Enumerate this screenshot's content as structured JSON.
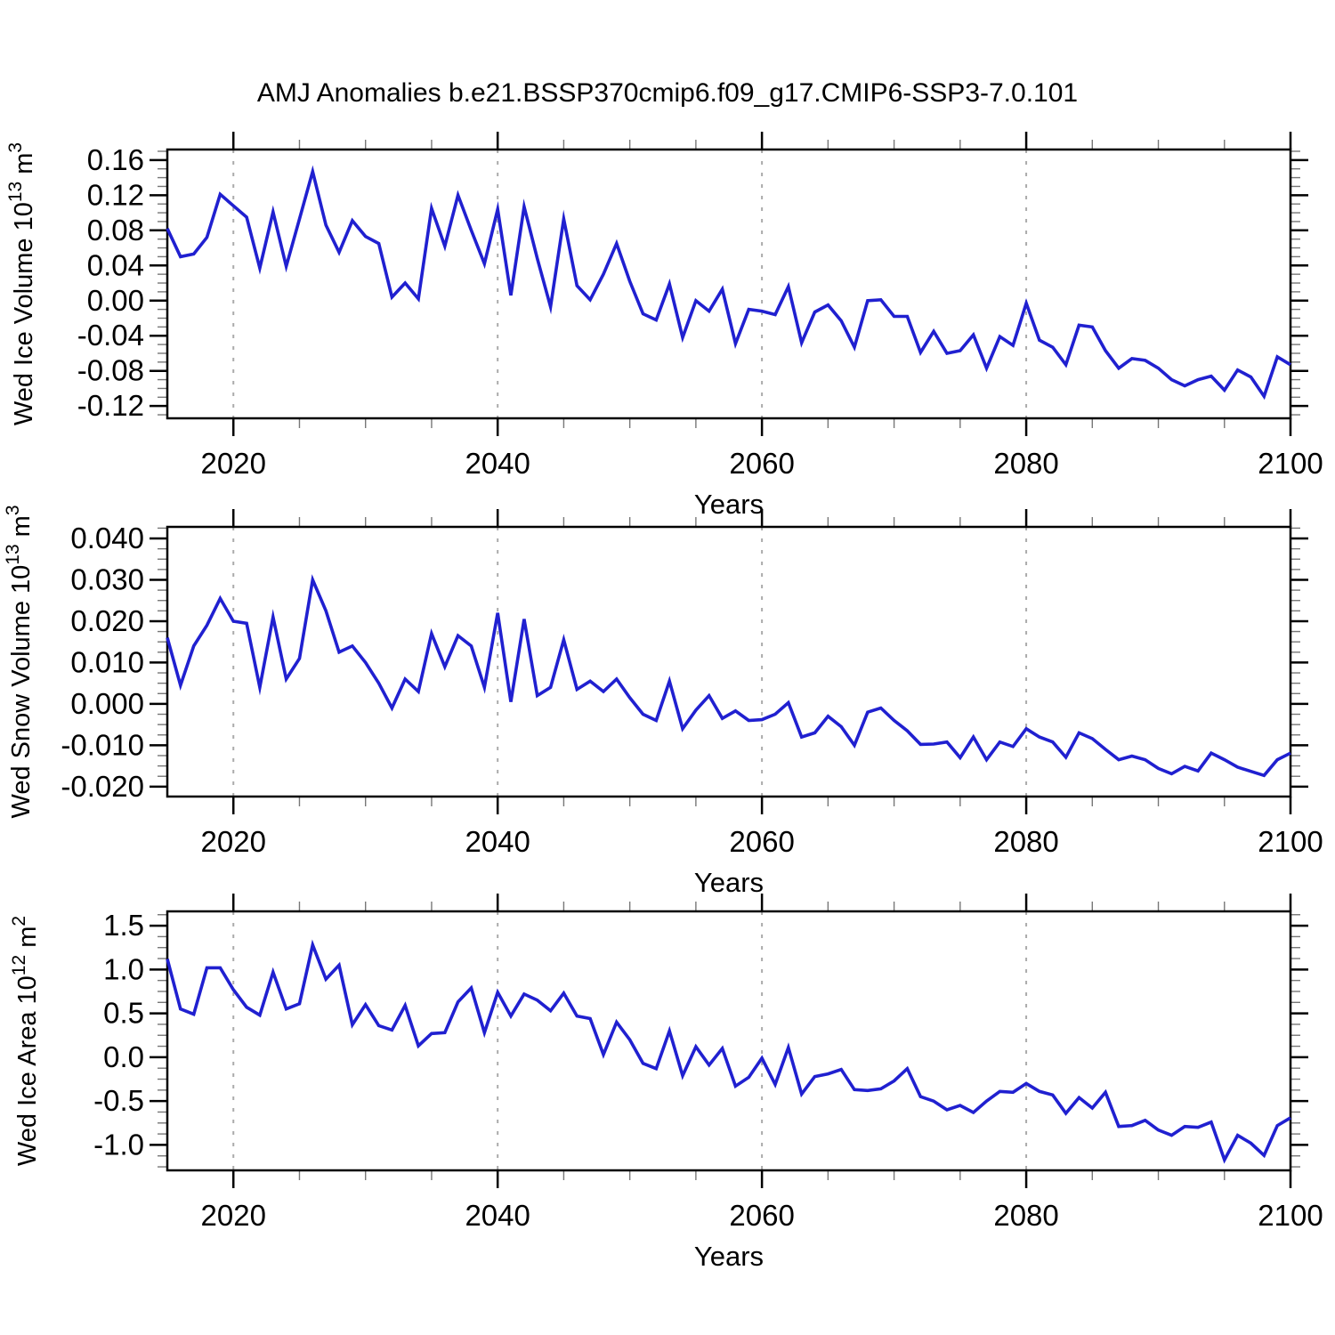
{
  "title": "AMJ Anomalies b.e21.BSSP370cmip6.f09_g17.CMIP6-SSP3-7.0.101",
  "colors": {
    "line": "#2020d0",
    "grid": "#ababab",
    "frame": "#000000",
    "minor_tick": "#777777",
    "text": "#000000"
  },
  "chart_data": [
    {
      "type": "line",
      "id": "wed-ice-volume",
      "ylabel_text": "Wed Ice Volume 10^13 m^3",
      "ylabel_parts": [
        {
          "text": "Wed Ice Volume 10",
          "sup": false
        },
        {
          "text": "13",
          "sup": true
        },
        {
          "text": " m",
          "sup": false
        },
        {
          "text": "3",
          "sup": true
        }
      ],
      "xlabel": "Years",
      "legend": "none",
      "grid": "vertical-dashed",
      "x_start": 2015,
      "x_step": 1,
      "xlim": [
        2015,
        2100
      ],
      "xticks": {
        "values": [
          2020,
          2040,
          2060,
          2080,
          2100
        ],
        "labels": [
          "2020",
          "2040",
          "2060",
          "2080",
          "2100"
        ]
      },
      "x_minor_step": 5,
      "gridlines_x": [
        2020,
        2040,
        2060,
        2080
      ],
      "ylim": [
        -0.134,
        0.172
      ],
      "yticks": {
        "values": [
          0.16,
          0.12,
          0.08,
          0.04,
          0.0,
          -0.04,
          -0.08,
          -0.12
        ],
        "labels": [
          "0.16",
          "0.12",
          "0.08",
          "0.04",
          "0.00",
          "-0.04",
          "-0.08",
          "-0.12"
        ]
      },
      "y_minor_step": 0.01,
      "values": [
        0.082,
        0.05,
        0.053,
        0.072,
        0.121,
        0.108,
        0.095,
        0.037,
        0.101,
        0.039,
        0.093,
        0.147,
        0.086,
        0.055,
        0.091,
        0.073,
        0.065,
        0.004,
        0.02,
        0.002,
        0.105,
        0.062,
        0.12,
        0.08,
        0.042,
        0.104,
        0.006,
        0.107,
        0.048,
        -0.007,
        0.093,
        0.017,
        0.001,
        0.03,
        0.065,
        0.022,
        -0.015,
        -0.022,
        0.019,
        -0.042,
        0,
        -0.012,
        0.013,
        -0.049,
        -0.01,
        -0.012,
        -0.016,
        0.016,
        -0.048,
        -0.013,
        -0.005,
        -0.023,
        -0.053,
        0,
        0.001,
        -0.018,
        -0.018,
        -0.059,
        -0.035,
        -0.06,
        -0.057,
        -0.039,
        -0.077,
        -0.041,
        -0.051,
        -0.003,
        -0.045,
        -0.053,
        -0.073,
        -0.028,
        -0.03,
        -0.057,
        -0.077,
        -0.066,
        -0.068,
        -0.077,
        -0.09,
        -0.097,
        -0.09,
        -0.086,
        -0.102,
        -0.079,
        -0.087,
        -0.109,
        -0.064,
        -0.073
      ]
    },
    {
      "type": "line",
      "id": "wed-snow-volume",
      "ylabel_text": "Wed Snow Volume 10^13 m^3",
      "ylabel_parts": [
        {
          "text": "Wed Snow Volume 10",
          "sup": false
        },
        {
          "text": "13",
          "sup": true
        },
        {
          "text": " m",
          "sup": false
        },
        {
          "text": "3",
          "sup": true
        }
      ],
      "xlabel": "Years",
      "legend": "none",
      "grid": "vertical-dashed",
      "x_start": 2015,
      "x_step": 1,
      "xlim": [
        2015,
        2100
      ],
      "xticks": {
        "values": [
          2020,
          2040,
          2060,
          2080,
          2100
        ],
        "labels": [
          "2020",
          "2040",
          "2060",
          "2080",
          "2100"
        ]
      },
      "x_minor_step": 5,
      "gridlines_x": [
        2020,
        2040,
        2060,
        2080
      ],
      "ylim": [
        -0.0224,
        0.0428
      ],
      "yticks": {
        "values": [
          0.04,
          0.03,
          0.02,
          0.01,
          0.0,
          -0.01,
          -0.02
        ],
        "labels": [
          "0.040",
          "0.030",
          "0.020",
          "0.010",
          "0.000",
          "-0.010",
          "-0.020"
        ]
      },
      "y_minor_step": 0.0025,
      "values": [
        0.016,
        0.0045,
        0.014,
        0.019,
        0.0255,
        0.02,
        0.0195,
        0.004,
        0.021,
        0.006,
        0.011,
        0.03,
        0.0225,
        0.0125,
        0.014,
        0.01,
        0.005,
        -0.001,
        0.006,
        0.003,
        0.017,
        0.009,
        0.0165,
        0.014,
        0.004,
        0.022,
        0.0005,
        0.0205,
        0.002,
        0.004,
        0.0155,
        0.0035,
        0.0055,
        0.003,
        0.006,
        0.0015,
        -0.0025,
        -0.004,
        0.0055,
        -0.006,
        -0.0015,
        0.002,
        -0.0035,
        -0.0017,
        -0.004,
        -0.0038,
        -0.0025,
        0.0003,
        -0.008,
        -0.007,
        -0.003,
        -0.0055,
        -0.01,
        -0.002,
        -0.001,
        -0.004,
        -0.0065,
        -0.0098,
        -0.0097,
        -0.0092,
        -0.013,
        -0.008,
        -0.0135,
        -0.0092,
        -0.0103,
        -0.006,
        -0.008,
        -0.0092,
        -0.0129,
        -0.007,
        -0.0084,
        -0.011,
        -0.0135,
        -0.0126,
        -0.0135,
        -0.0156,
        -0.0169,
        -0.0151,
        -0.0162,
        -0.0119,
        -0.0135,
        -0.0153,
        -0.0163,
        -0.0173,
        -0.0135,
        -0.0119
      ]
    },
    {
      "type": "line",
      "id": "wed-ice-area",
      "ylabel_text": "Wed Ice Area 10^12 m^2",
      "ylabel_parts": [
        {
          "text": "Wed Ice Area 10",
          "sup": false
        },
        {
          "text": "12",
          "sup": true
        },
        {
          "text": " m",
          "sup": false
        },
        {
          "text": "2",
          "sup": true
        }
      ],
      "xlabel": "Years",
      "legend": "none",
      "grid": "vertical-dashed",
      "x_start": 2015,
      "x_step": 1,
      "xlim": [
        2015,
        2100
      ],
      "xticks": {
        "values": [
          2020,
          2040,
          2060,
          2080,
          2100
        ],
        "labels": [
          "2020",
          "2040",
          "2060",
          "2080",
          "2100"
        ]
      },
      "x_minor_step": 5,
      "gridlines_x": [
        2020,
        2040,
        2060,
        2080
      ],
      "ylim": [
        -1.29,
        1.663
      ],
      "yticks": {
        "values": [
          1.5,
          1.0,
          0.5,
          0.0,
          -0.5,
          -1.0
        ],
        "labels": [
          "1.5",
          "1.0",
          "0.5",
          "0.0",
          "-0.5",
          "-1.0"
        ]
      },
      "y_minor_step": 0.125,
      "values": [
        1.12,
        0.55,
        0.49,
        1.02,
        1.02,
        0.77,
        0.57,
        0.48,
        0.97,
        0.55,
        0.61,
        1.28,
        0.89,
        1.05,
        0.37,
        0.6,
        0.36,
        0.31,
        0.59,
        0.13,
        0.27,
        0.28,
        0.63,
        0.79,
        0.28,
        0.74,
        0.47,
        0.72,
        0.65,
        0.53,
        0.73,
        0.47,
        0.44,
        0.03,
        0.4,
        0.2,
        -0.07,
        -0.13,
        0.3,
        -0.21,
        0.12,
        -0.09,
        0.1,
        -0.33,
        -0.23,
        -0.01,
        -0.31,
        0.11,
        -0.42,
        -0.22,
        -0.19,
        -0.14,
        -0.37,
        -0.38,
        -0.36,
        -0.27,
        -0.13,
        -0.45,
        -0.5,
        -0.6,
        -0.55,
        -0.63,
        -0.5,
        -0.39,
        -0.4,
        -0.3,
        -0.39,
        -0.43,
        -0.64,
        -0.46,
        -0.58,
        -0.4,
        -0.79,
        -0.78,
        -0.72,
        -0.83,
        -0.89,
        -0.79,
        -0.8,
        -0.74,
        -1.17,
        -0.89,
        -0.98,
        -1.12,
        -0.78,
        -0.69
      ]
    }
  ]
}
